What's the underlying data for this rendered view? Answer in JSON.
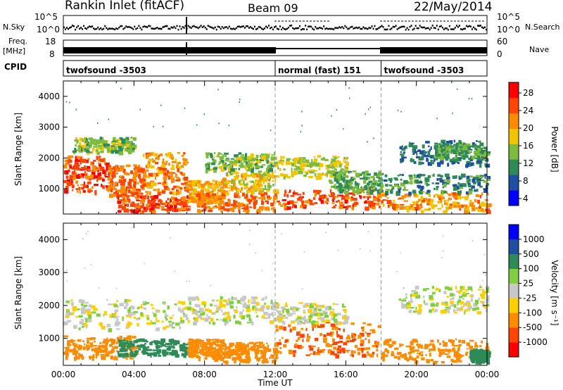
{
  "header": {
    "radar": "Rankin Inlet (fitACF)",
    "beam": "Beam 09",
    "date": "22/May/2014"
  },
  "panels": {
    "nsky_label": "N.Sky",
    "nsearch_label": "N.Search",
    "freq_label": "Freq.",
    "freq_unit": "[MHz]",
    "nave_label": "Nave",
    "cpid_label": "CPID",
    "noise_ticks": [
      "10^5",
      "10^0"
    ],
    "freq_ticks": [
      "18",
      "8"
    ],
    "nave_ticks": [
      "60",
      "0"
    ]
  },
  "cpid_segments": [
    {
      "label": "twofsound -3503",
      "start_hour": 0
    },
    {
      "label": "normal (fast) 151",
      "start_hour": 12
    },
    {
      "label": "twofsound -3503",
      "start_hour": 18
    }
  ],
  "axes": {
    "x_label": "Time UT",
    "x_ticks": [
      "00:00",
      "04:00",
      "08:00",
      "12:00",
      "16:00",
      "20:00",
      "00:00"
    ],
    "y_label": "Slant Range [km]",
    "y_ticks": [
      "4000",
      "3000",
      "2000",
      "1000"
    ]
  },
  "chart_data": [
    {
      "type": "heatmap",
      "name": "power",
      "colorbar_label": "Power [dB]",
      "colorbar_ticks": [
        "28",
        "24",
        "20",
        "16",
        "12",
        "8",
        "4"
      ],
      "colors": [
        "#0000ff",
        "#1f4fa0",
        "#2e8b57",
        "#7dbb3c",
        "#f2c400",
        "#ff8c00",
        "#ff4500",
        "#ff0000"
      ],
      "x_range": [
        0,
        24
      ],
      "y_range": [
        180,
        4500
      ],
      "blobs": [
        {
          "x": [
            0,
            2.5
          ],
          "y": [
            900,
            2100
          ],
          "v": 26
        },
        {
          "x": [
            2.5,
            4.5
          ],
          "y": [
            800,
            1800
          ],
          "v": 24
        },
        {
          "x": [
            4.5,
            7
          ],
          "y": [
            900,
            2200
          ],
          "v": 22
        },
        {
          "x": [
            3,
            7
          ],
          "y": [
            300,
            800
          ],
          "v": 26
        },
        {
          "x": [
            7,
            9
          ],
          "y": [
            600,
            1300
          ],
          "v": 20
        },
        {
          "x": [
            7.5,
            12
          ],
          "y": [
            300,
            900
          ],
          "v": 24
        },
        {
          "x": [
            9,
            12
          ],
          "y": [
            900,
            1600
          ],
          "v": 18
        },
        {
          "x": [
            8,
            12
          ],
          "y": [
            1600,
            2200
          ],
          "v": 14
        },
        {
          "x": [
            12,
            16
          ],
          "y": [
            1400,
            2100
          ],
          "v": 16
        },
        {
          "x": [
            12,
            18
          ],
          "y": [
            400,
            1000
          ],
          "v": 26
        },
        {
          "x": [
            15,
            18
          ],
          "y": [
            900,
            1600
          ],
          "v": 12
        },
        {
          "x": [
            18,
            24
          ],
          "y": [
            300,
            900
          ],
          "v": 22
        },
        {
          "x": [
            18,
            24
          ],
          "y": [
            900,
            1500
          ],
          "v": 10
        },
        {
          "x": [
            19,
            24
          ],
          "y": [
            1800,
            2600
          ],
          "v": 8
        },
        {
          "x": [
            0.5,
            4
          ],
          "y": [
            2200,
            2700
          ],
          "v": 14
        },
        {
          "x": [
            21,
            24
          ],
          "y": [
            2000,
            2500
          ],
          "v": 12
        }
      ]
    },
    {
      "type": "heatmap",
      "name": "velocity",
      "colorbar_label": "Velocity [m s⁻¹]",
      "colorbar_ticks": [
        "1000",
        "500",
        "100",
        "25",
        "-25",
        "-100",
        "-500",
        "-1000"
      ],
      "colors": [
        "#ff0000",
        "#ff4500",
        "#ff8c00",
        "#ffd000",
        "#c8c8c8",
        "#7fcf3f",
        "#2e8b57",
        "#1f4fa0",
        "#0000ff"
      ],
      "x_range": [
        0,
        24
      ],
      "y_range": [
        180,
        4500
      ],
      "blobs": [
        {
          "x": [
            0,
            7
          ],
          "y": [
            1300,
            2200
          ],
          "v": 0
        },
        {
          "x": [
            0,
            4
          ],
          "y": [
            400,
            1100
          ],
          "v": -300
        },
        {
          "x": [
            3,
            7
          ],
          "y": [
            500,
            1000
          ],
          "v": 300
        },
        {
          "x": [
            7,
            9
          ],
          "y": [
            400,
            1000
          ],
          "v": -200
        },
        {
          "x": [
            7,
            12
          ],
          "y": [
            1500,
            2300
          ],
          "v": 0
        },
        {
          "x": [
            9,
            12
          ],
          "y": [
            300,
            900
          ],
          "v": -300
        },
        {
          "x": [
            12,
            18
          ],
          "y": [
            500,
            1500
          ],
          "v": -500
        },
        {
          "x": [
            12,
            16
          ],
          "y": [
            1500,
            2100
          ],
          "v": 0
        },
        {
          "x": [
            18,
            24
          ],
          "y": [
            300,
            1000
          ],
          "v": -300
        },
        {
          "x": [
            19,
            24
          ],
          "y": [
            1800,
            2600
          ],
          "v": 0
        },
        {
          "x": [
            23,
            24
          ],
          "y": [
            300,
            700
          ],
          "v": 200
        }
      ]
    }
  ]
}
